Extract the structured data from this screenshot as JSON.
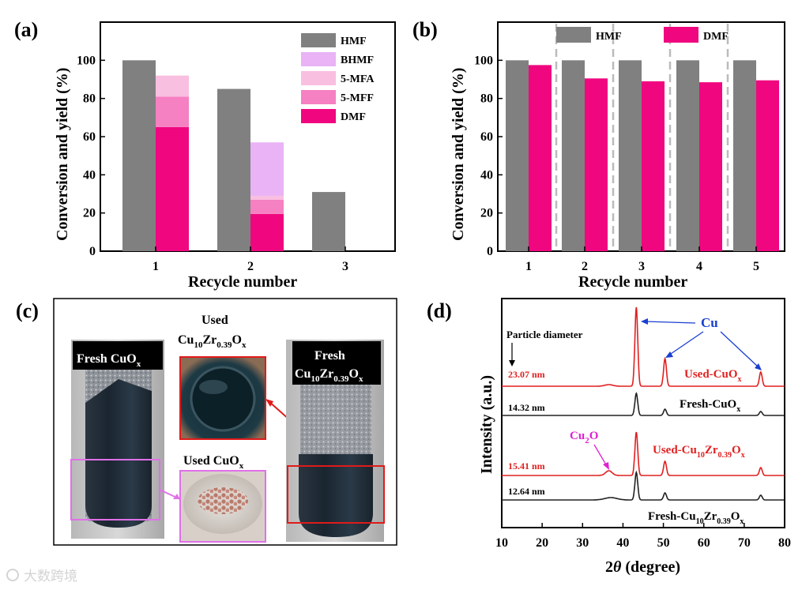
{
  "panels": {
    "a": "(a)",
    "b": "(b)",
    "c": "(c)",
    "d": "(d)"
  },
  "colors": {
    "HMF": "#808080",
    "BHMF": "#e9b3f5",
    "5-MFA": "#f9bfe0",
    "5-MFF": "#f580c2",
    "DMF": "#f0077f",
    "cu_red": "#e02020",
    "cu_blue": "#1a3fd0",
    "frame_red": "#e01a1a",
    "frame_pink": "#e070e8"
  },
  "chart_data": [
    {
      "id": "a",
      "type": "bar",
      "title": "",
      "xlabel": "Recycle number",
      "ylabel": "Conversion and yield (%)",
      "ylim": [
        0,
        120
      ],
      "yticks": [
        0,
        20,
        40,
        60,
        80,
        100
      ],
      "categories": [
        "1",
        "2",
        "3"
      ],
      "conversion": {
        "name": "HMF",
        "values": [
          100,
          85,
          31
        ]
      },
      "stacked_yields": [
        {
          "name": "DMF",
          "values": [
            65,
            19.5,
            0
          ]
        },
        {
          "name": "5-MFF",
          "values": [
            16,
            7.5,
            0
          ]
        },
        {
          "name": "5-MFA",
          "values": [
            11,
            2,
            0
          ]
        },
        {
          "name": "BHMF",
          "values": [
            0,
            28,
            0
          ]
        }
      ],
      "legend": [
        "HMF",
        "BHMF",
        "5-MFA",
        "5-MFF",
        "DMF"
      ]
    },
    {
      "id": "b",
      "type": "bar",
      "title": "",
      "xlabel": "Recycle number",
      "ylabel": "Conversion and yield (%)",
      "ylim": [
        0,
        120
      ],
      "yticks": [
        0,
        20,
        40,
        60,
        80,
        100
      ],
      "categories": [
        "1",
        "2",
        "3",
        "4",
        "5"
      ],
      "series": [
        {
          "name": "HMF",
          "values": [
            100,
            100,
            100,
            100,
            100
          ]
        },
        {
          "name": "DMF",
          "values": [
            97.5,
            90.5,
            89,
            88.5,
            89.5
          ]
        }
      ],
      "legend": [
        "HMF",
        "DMF"
      ]
    },
    {
      "id": "d",
      "type": "line",
      "xlabel_pre": "2",
      "xlabel_theta": "θ",
      "xlabel_post": " (degree)",
      "ylabel": "Intensity (a.u.)",
      "xlim": [
        10,
        80
      ],
      "xticks": [
        10,
        20,
        30,
        40,
        50,
        60,
        70,
        80
      ],
      "particle_label": "Particle diameter",
      "cu_label": "Cu",
      "cu2o_label": [
        "Cu",
        "2",
        "O"
      ],
      "peak_positions": [
        43.3,
        50.4,
        74.1
      ],
      "series": [
        {
          "name": "Used-CuOx",
          "label": [
            "Used-CuO",
            "x"
          ],
          "diameter": "23.07 nm",
          "color": "red",
          "peaks": [
            1.0,
            0.35,
            0.18
          ]
        },
        {
          "name": "Fresh-CuOx",
          "label": [
            "Fresh-CuO",
            "x"
          ],
          "diameter": "14.32 nm",
          "color": "black",
          "peaks": [
            0.28,
            0.08,
            0.05
          ]
        },
        {
          "name": "Used-Cu10Zr0.39Ox",
          "label": [
            "Used-Cu",
            "10",
            "Zr",
            "0.39",
            "O",
            "x"
          ],
          "diameter": "15.41 nm",
          "color": "red",
          "peaks": [
            0.55,
            0.18,
            0.1
          ]
        },
        {
          "name": "Fresh-Cu10Zr0.39Ox",
          "label": [
            "Fresh-Cu",
            "10",
            "Zr",
            "0.39",
            "O",
            "x"
          ],
          "diameter": "12.64 nm",
          "color": "black",
          "peaks": [
            0.35,
            0.09,
            0.06
          ]
        }
      ]
    }
  ],
  "photo": {
    "fresh_cuox": [
      "Fresh CuO",
      "x"
    ],
    "used_cat_line1": "Used",
    "used_cat_line2": [
      "Cu",
      "10",
      "Zr",
      "0.39",
      "O",
      "x"
    ],
    "used_cuox": [
      "Used CuO",
      "x"
    ],
    "fresh_cat_line1": "Fresh",
    "fresh_cat_line2": [
      "Cu",
      "10",
      "Zr",
      "0.39",
      "O",
      "x"
    ]
  },
  "watermark": "大数跨境"
}
